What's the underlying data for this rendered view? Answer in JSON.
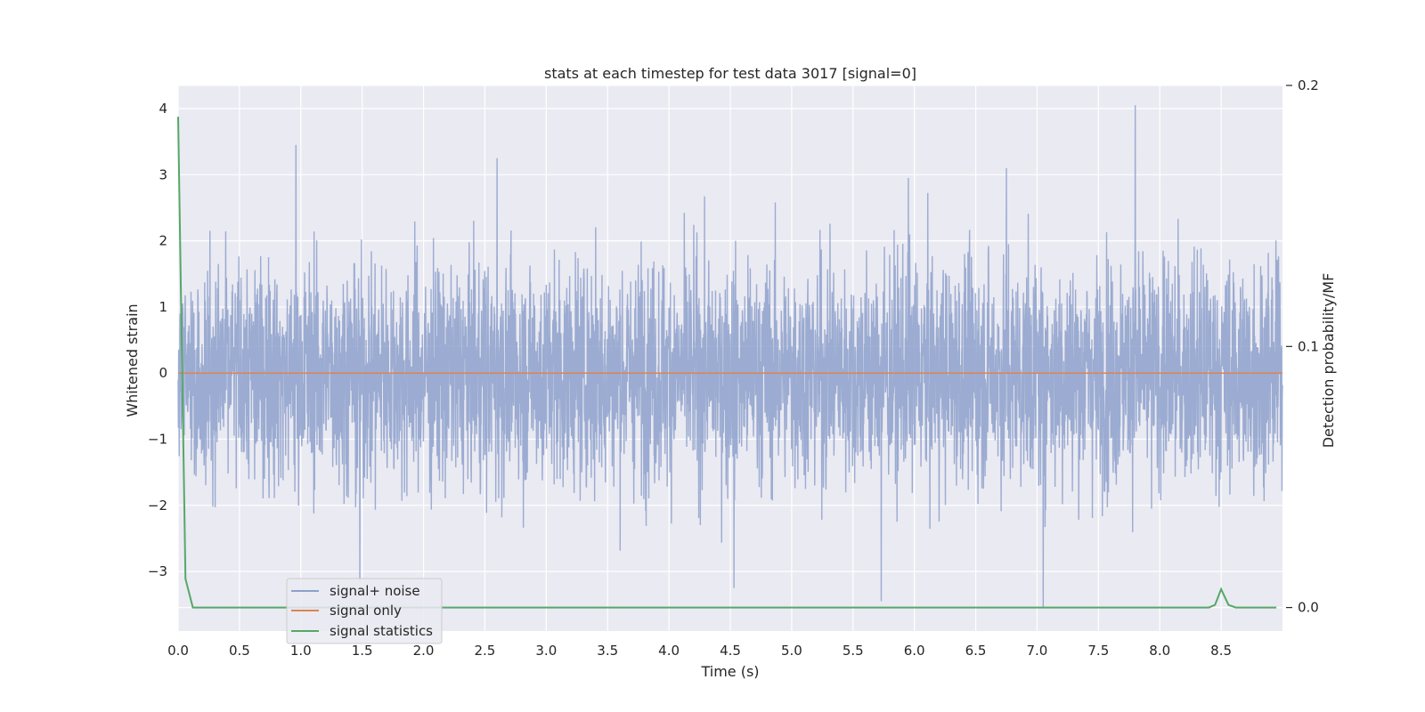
{
  "chart_data": {
    "type": "line",
    "title": "stats at each timestep for test data 3017 [signal=0]",
    "xlabel": "Time (s)",
    "ylabel": "Whitened strain",
    "y2label": "Detection probability/MF",
    "xlim": [
      0.0,
      9.0
    ],
    "ylim": [
      -3.9,
      4.35
    ],
    "y2lim": [
      -0.009,
      0.2
    ],
    "xticks": [
      "0.0",
      "0.5",
      "1.0",
      "1.5",
      "2.0",
      "2.5",
      "3.0",
      "3.5",
      "4.0",
      "4.5",
      "5.0",
      "5.5",
      "6.0",
      "6.5",
      "7.0",
      "7.5",
      "8.0",
      "8.5"
    ],
    "yticks": [
      "−3",
      "−2",
      "−1",
      "0",
      "1",
      "2",
      "3",
      "4"
    ],
    "y2ticks": [
      "0.0",
      "0.1",
      "0.2"
    ],
    "grid": true,
    "legend_position": "lower-left",
    "colors": {
      "signal_noise": "#8da0cb",
      "signal_only": "#dd8452",
      "signal_statistics": "#55a868",
      "plot_bg": "#eaeaf2",
      "grid": "#ffffff"
    },
    "series": [
      {
        "name": "signal+ noise",
        "axis": "left",
        "note_generated": true,
        "x_range": [
          0.0,
          9.0
        ],
        "amplitude_std": 0.85,
        "peaks": [
          {
            "x": 0.96,
            "y": 3.45
          },
          {
            "x": 1.48,
            "y": -3.15
          },
          {
            "x": 2.6,
            "y": 3.25
          },
          {
            "x": 4.53,
            "y": -3.25
          },
          {
            "x": 5.73,
            "y": -3.45
          },
          {
            "x": 5.95,
            "y": 2.95
          },
          {
            "x": 6.75,
            "y": 3.1
          },
          {
            "x": 7.05,
            "y": -3.55
          },
          {
            "x": 7.8,
            "y": 4.05
          }
        ]
      },
      {
        "name": "signal only",
        "axis": "left",
        "x": [
          0.0,
          9.0
        ],
        "y": [
          0.0,
          0.0
        ]
      },
      {
        "name": "signal statistics",
        "axis": "right",
        "x": [
          0.0,
          0.06,
          0.12,
          0.5,
          1.0,
          2.0,
          3.0,
          4.0,
          5.0,
          6.0,
          7.0,
          8.0,
          8.4,
          8.45,
          8.5,
          8.56,
          8.62,
          8.7,
          8.95
        ],
        "y": [
          0.188,
          0.011,
          0.0,
          0.0,
          0.0,
          0.0,
          0.0,
          0.0,
          0.0,
          0.0,
          0.0,
          0.0,
          0.0,
          0.001,
          0.007,
          0.001,
          0.0,
          0.0,
          0.0
        ]
      }
    ]
  }
}
